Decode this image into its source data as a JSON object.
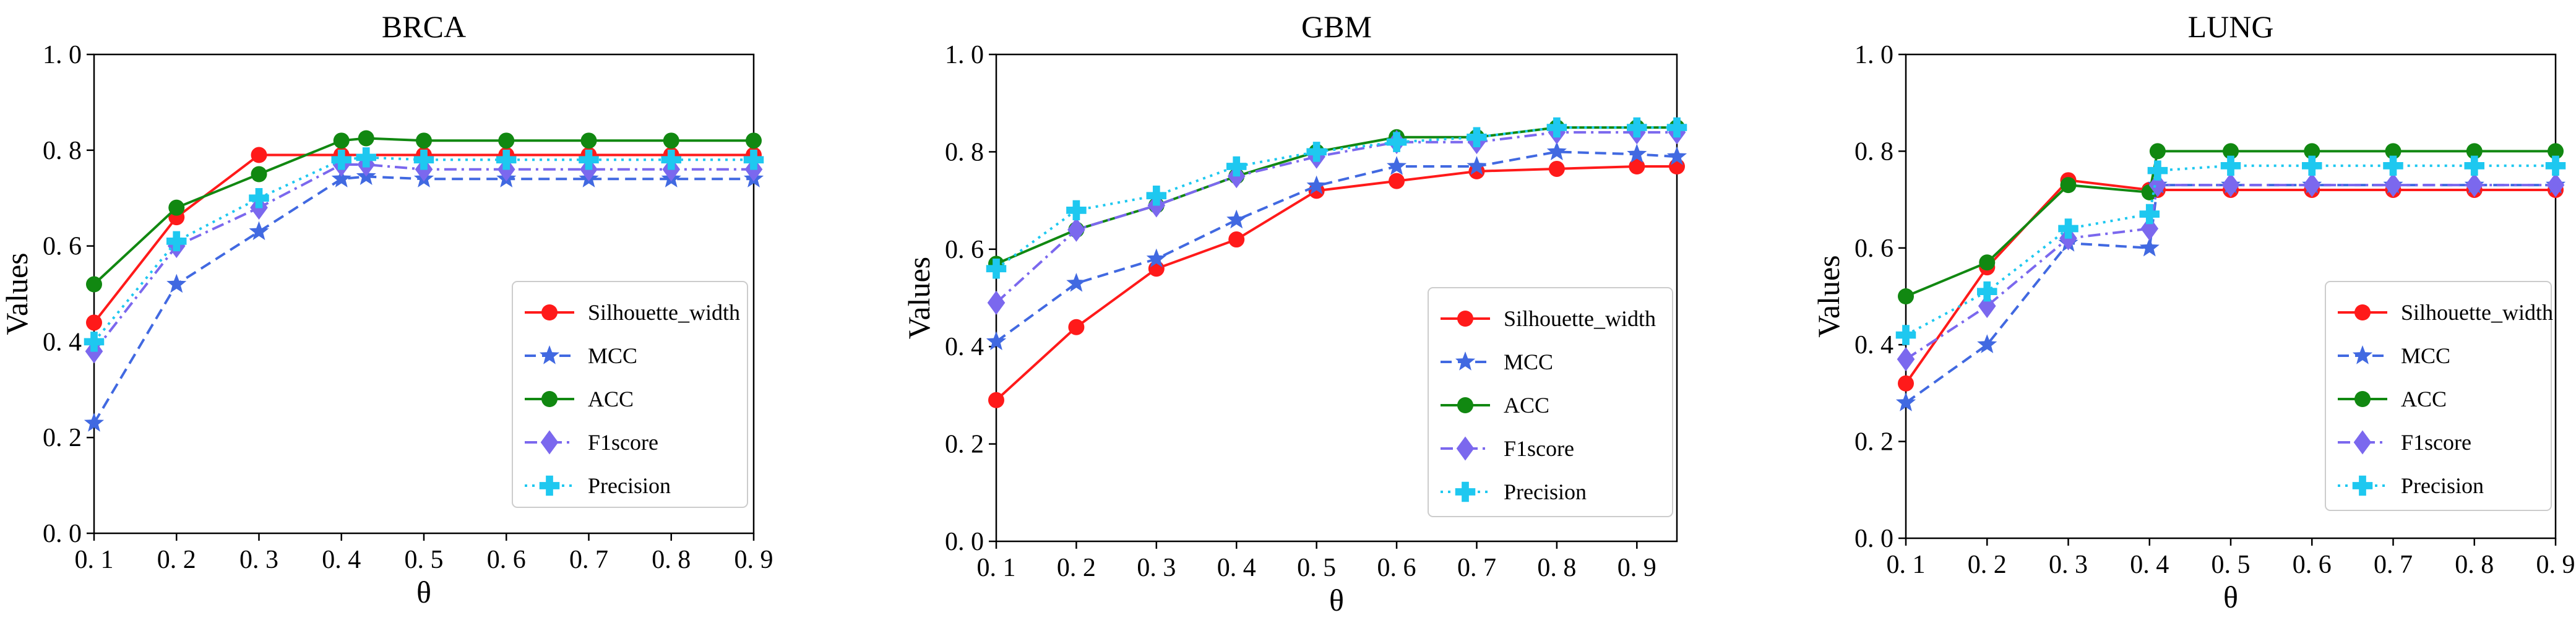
{
  "chart_data": [
    {
      "type": "line",
      "title": "BRCA",
      "xlabel": "θ",
      "ylabel": "Values",
      "xlim": [
        0.1,
        0.9
      ],
      "ylim": [
        0.0,
        1.0
      ],
      "x_ticks": [
        "0. 1",
        "0. 2",
        "0. 3",
        "0. 4",
        "0. 5",
        "0. 6",
        "0. 7",
        "0. 8",
        "0. 9"
      ],
      "y_ticks": [
        "0. 0",
        "0. 2",
        "0. 4",
        "0. 6",
        "0. 8",
        "1. 0"
      ],
      "legend_position": "lower-right",
      "series": [
        {
          "name": "Silhouette_width",
          "x": [
            0.1,
            0.2,
            0.3,
            0.4,
            0.5,
            0.6,
            0.7,
            0.8,
            0.9
          ],
          "values": [
            0.44,
            0.66,
            0.79,
            0.79,
            0.79,
            0.79,
            0.79,
            0.79,
            0.79
          ]
        },
        {
          "name": "MCC",
          "x": [
            0.1,
            0.2,
            0.3,
            0.4,
            0.43,
            0.5,
            0.6,
            0.7,
            0.8,
            0.9
          ],
          "values": [
            0.23,
            0.52,
            0.63,
            0.74,
            0.745,
            0.74,
            0.74,
            0.74,
            0.74,
            0.74
          ]
        },
        {
          "name": "ACC",
          "x": [
            0.1,
            0.2,
            0.3,
            0.4,
            0.43,
            0.5,
            0.6,
            0.7,
            0.8,
            0.9
          ],
          "values": [
            0.52,
            0.68,
            0.75,
            0.82,
            0.825,
            0.82,
            0.82,
            0.82,
            0.82,
            0.82
          ]
        },
        {
          "name": "F1score",
          "x": [
            0.1,
            0.2,
            0.3,
            0.4,
            0.43,
            0.5,
            0.6,
            0.7,
            0.8,
            0.9
          ],
          "values": [
            0.38,
            0.6,
            0.68,
            0.77,
            0.77,
            0.76,
            0.76,
            0.76,
            0.76,
            0.76
          ]
        },
        {
          "name": "Precision",
          "x": [
            0.1,
            0.2,
            0.3,
            0.4,
            0.43,
            0.5,
            0.6,
            0.7,
            0.8,
            0.9
          ],
          "values": [
            0.4,
            0.61,
            0.7,
            0.78,
            0.785,
            0.78,
            0.78,
            0.78,
            0.78,
            0.78
          ]
        }
      ]
    },
    {
      "type": "line",
      "title": "GBM",
      "xlabel": "θ",
      "ylabel": "Values",
      "xlim": [
        0.1,
        0.95
      ],
      "ylim": [
        0.0,
        1.0
      ],
      "x_ticks": [
        "0. 1",
        "0. 2",
        "0. 3",
        "0. 4",
        "0. 5",
        "0. 6",
        "0. 7",
        "0. 8",
        "0. 9"
      ],
      "y_ticks": [
        "0. 0",
        "0. 2",
        "0. 4",
        "0. 6",
        "0. 8",
        "1. 0"
      ],
      "legend_position": "lower-right",
      "series": [
        {
          "name": "Silhouette_width",
          "x": [
            0.1,
            0.2,
            0.3,
            0.4,
            0.5,
            0.6,
            0.7,
            0.8,
            0.9,
            0.95
          ],
          "values": [
            0.29,
            0.44,
            0.56,
            0.62,
            0.72,
            0.74,
            0.76,
            0.765,
            0.77,
            0.77
          ]
        },
        {
          "name": "MCC",
          "x": [
            0.1,
            0.2,
            0.3,
            0.4,
            0.5,
            0.6,
            0.7,
            0.8,
            0.9,
            0.95
          ],
          "values": [
            0.41,
            0.53,
            0.58,
            0.66,
            0.73,
            0.77,
            0.77,
            0.8,
            0.795,
            0.79
          ]
        },
        {
          "name": "ACC",
          "x": [
            0.1,
            0.2,
            0.3,
            0.4,
            0.5,
            0.6,
            0.7,
            0.8,
            0.9,
            0.95
          ],
          "values": [
            0.57,
            0.64,
            0.69,
            0.75,
            0.8,
            0.83,
            0.83,
            0.85,
            0.85,
            0.85
          ]
        },
        {
          "name": "F1score",
          "x": [
            0.1,
            0.2,
            0.3,
            0.4,
            0.5,
            0.6,
            0.7,
            0.8,
            0.9,
            0.95
          ],
          "values": [
            0.49,
            0.64,
            0.69,
            0.75,
            0.79,
            0.82,
            0.82,
            0.84,
            0.84,
            0.84
          ]
        },
        {
          "name": "Precision",
          "x": [
            0.1,
            0.2,
            0.3,
            0.4,
            0.5,
            0.6,
            0.7,
            0.8,
            0.9,
            0.95
          ],
          "values": [
            0.56,
            0.68,
            0.71,
            0.77,
            0.8,
            0.82,
            0.83,
            0.85,
            0.85,
            0.85
          ]
        }
      ]
    },
    {
      "type": "line",
      "title": "LUNG",
      "xlabel": "θ",
      "ylabel": "Values",
      "xlim": [
        0.1,
        0.9
      ],
      "ylim": [
        0.0,
        1.0
      ],
      "x_ticks": [
        "0. 1",
        "0. 2",
        "0. 3",
        "0. 4",
        "0. 5",
        "0. 6",
        "0. 7",
        "0. 8",
        "0. 9"
      ],
      "y_ticks": [
        "0. 0",
        "0. 2",
        "0. 4",
        "0. 6",
        "0. 8",
        "1. 0"
      ],
      "legend_position": "lower-right",
      "series": [
        {
          "name": "Silhouette_width",
          "x": [
            0.1,
            0.2,
            0.3,
            0.4,
            0.41,
            0.5,
            0.6,
            0.7,
            0.8,
            0.9
          ],
          "values": [
            0.32,
            0.56,
            0.74,
            0.72,
            0.72,
            0.72,
            0.72,
            0.72,
            0.72,
            0.72
          ]
        },
        {
          "name": "MCC",
          "x": [
            0.1,
            0.2,
            0.3,
            0.4,
            0.41,
            0.5,
            0.6,
            0.7,
            0.8,
            0.9
          ],
          "values": [
            0.28,
            0.4,
            0.61,
            0.6,
            0.73,
            0.73,
            0.73,
            0.73,
            0.73,
            0.73
          ]
        },
        {
          "name": "ACC",
          "x": [
            0.1,
            0.2,
            0.3,
            0.4,
            0.41,
            0.5,
            0.6,
            0.7,
            0.8,
            0.9
          ],
          "values": [
            0.5,
            0.57,
            0.73,
            0.715,
            0.8,
            0.8,
            0.8,
            0.8,
            0.8,
            0.8
          ]
        },
        {
          "name": "F1score",
          "x": [
            0.1,
            0.2,
            0.3,
            0.4,
            0.41,
            0.5,
            0.6,
            0.7,
            0.8,
            0.9
          ],
          "values": [
            0.37,
            0.48,
            0.62,
            0.64,
            0.73,
            0.73,
            0.73,
            0.73,
            0.73,
            0.73
          ]
        },
        {
          "name": "Precision",
          "x": [
            0.1,
            0.2,
            0.3,
            0.4,
            0.41,
            0.5,
            0.6,
            0.7,
            0.8,
            0.9
          ],
          "values": [
            0.42,
            0.51,
            0.64,
            0.67,
            0.76,
            0.77,
            0.77,
            0.77,
            0.77,
            0.77
          ]
        }
      ]
    }
  ],
  "series_styles": [
    {
      "name": "Silhouette_width",
      "color": "#ff1a1a",
      "dash": "solid",
      "marker": "circle"
    },
    {
      "name": "MCC",
      "color": "#4169e1",
      "dash": "dashed",
      "marker": "star"
    },
    {
      "name": "ACC",
      "color": "#118811",
      "dash": "solid",
      "marker": "circle"
    },
    {
      "name": "F1score",
      "color": "#7b68ee",
      "dash": "dashdot",
      "marker": "diamond"
    },
    {
      "name": "Precision",
      "color": "#1ec8f0",
      "dash": "dotted",
      "marker": "plus"
    }
  ]
}
